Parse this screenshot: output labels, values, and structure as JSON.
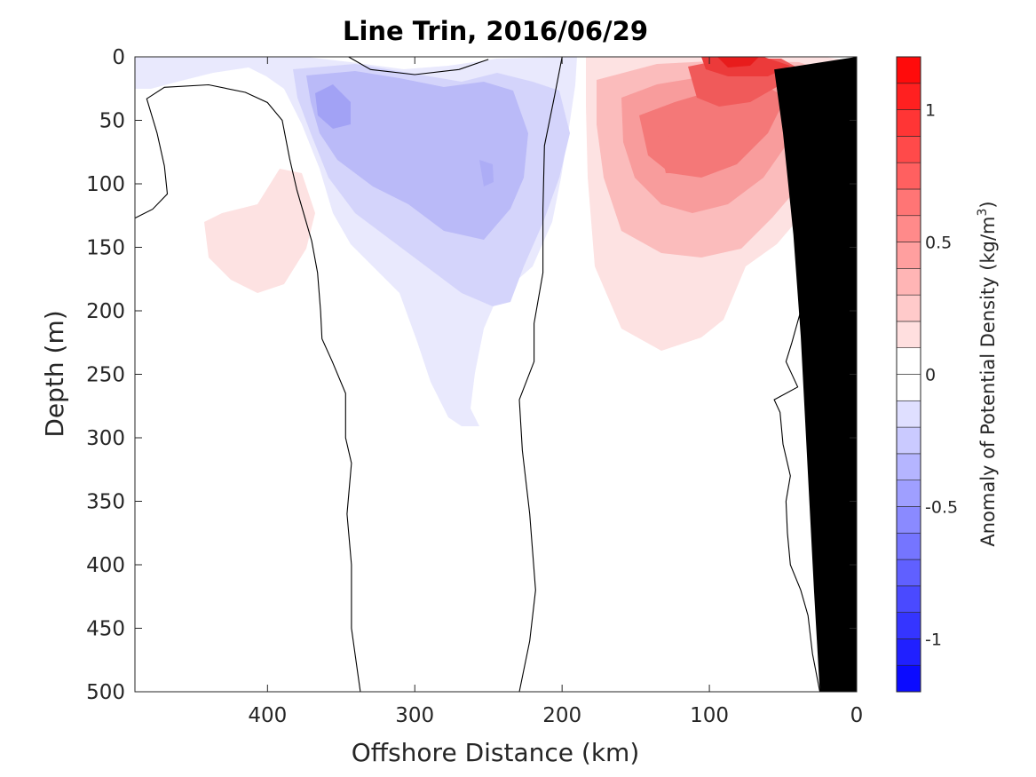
{
  "chart_data": {
    "type": "contour",
    "title": "Line Trin, 2016/06/29",
    "xlabel": "Offshore Distance (km)",
    "ylabel": "Depth (m)",
    "colorbar_label": "Anomaly of Potential Density (kg/m",
    "colorbar_label_sup": "3",
    "colorbar_label_end": ")",
    "xlim": [
      490,
      0
    ],
    "x_reversed": true,
    "xticks": [
      400,
      300,
      200,
      100,
      0
    ],
    "xtick_labels": [
      "400",
      "300",
      "200",
      "100",
      "0"
    ],
    "ylim": [
      0,
      500
    ],
    "y_reversed": true,
    "yticks": [
      0,
      50,
      100,
      150,
      200,
      250,
      300,
      350,
      400,
      450,
      500
    ],
    "ytick_labels": [
      "0",
      "50",
      "100",
      "150",
      "200",
      "250",
      "300",
      "350",
      "400",
      "450",
      "500"
    ],
    "clim": [
      -1.2,
      1.2
    ],
    "cticks": [
      -1,
      -0.5,
      0,
      0.5,
      1
    ],
    "ctick_labels": [
      "-1",
      "-0.5",
      "0",
      "0.5",
      "1"
    ],
    "colormap": "blue-white-red",
    "colormap_colors": {
      "negative": "#0000ff",
      "zero": "#ffffff",
      "positive": "#ff0000"
    },
    "n_levels": 24,
    "features": [
      {
        "name": "negative anomaly (blue) core",
        "x_range_km": [
          370,
          200
        ],
        "depth_range_m": [
          0,
          290
        ],
        "min_value": -0.45
      },
      {
        "name": "positive anomaly (red) core",
        "x_range_km": [
          175,
          30
        ],
        "depth_range_m": [
          0,
          230
        ],
        "max_value": 1.15
      },
      {
        "name": "weak positive patch",
        "x_range_km": [
          455,
          370
        ],
        "depth_range_m": [
          80,
          185
        ],
        "max_value": 0.15
      }
    ],
    "zero_contours": [
      {
        "name": "zero-contour-offshore",
        "points": [
          [
            490,
            127
          ],
          [
            478,
            120
          ],
          [
            468,
            108
          ],
          [
            470,
            86
          ],
          [
            475,
            60
          ],
          [
            482,
            33
          ],
          [
            470,
            24
          ],
          [
            440,
            22
          ],
          [
            415,
            28
          ],
          [
            400,
            36
          ],
          [
            390,
            50
          ],
          [
            385,
            80
          ],
          [
            380,
            105
          ],
          [
            375,
            125
          ],
          [
            370,
            145
          ],
          [
            366,
            170
          ],
          [
            364,
            200
          ],
          [
            363,
            222
          ],
          [
            356,
            240
          ],
          [
            347,
            265
          ],
          [
            347,
            300
          ],
          [
            343,
            320
          ],
          [
            346,
            360
          ],
          [
            343,
            400
          ],
          [
            343,
            450
          ],
          [
            337,
            500
          ]
        ]
      },
      {
        "name": "zero-contour-mid",
        "points": [
          [
            200,
            0
          ],
          [
            205,
            30
          ],
          [
            212,
            70
          ],
          [
            213,
            120
          ],
          [
            213,
            170
          ],
          [
            219,
            210
          ],
          [
            219,
            240
          ],
          [
            229,
            270
          ],
          [
            227,
            310
          ],
          [
            222,
            360
          ],
          [
            220,
            390
          ],
          [
            218,
            420
          ],
          [
            222,
            460
          ],
          [
            229,
            500
          ]
        ]
      },
      {
        "name": "zero-contour-surface-loop",
        "points": [
          [
            345,
            0
          ],
          [
            330,
            10
          ],
          [
            300,
            14
          ],
          [
            270,
            10
          ],
          [
            250,
            2
          ]
        ]
      },
      {
        "name": "zero-contour-coastal",
        "points": [
          [
            25,
            500
          ],
          [
            30,
            470
          ],
          [
            33,
            440
          ],
          [
            38,
            420
          ],
          [
            45,
            400
          ],
          [
            47,
            375
          ],
          [
            48,
            350
          ],
          [
            45,
            330
          ],
          [
            50,
            305
          ],
          [
            52,
            280
          ],
          [
            56,
            270
          ],
          [
            40,
            260
          ],
          [
            48,
            240
          ],
          [
            44,
            225
          ],
          [
            38,
            200
          ],
          [
            40,
            180
          ],
          [
            38,
            150
          ],
          [
            35,
            125
          ],
          [
            30,
            110
          ]
        ]
      }
    ],
    "bathymetry": {
      "color": "#000000",
      "points": [
        [
          0,
          0
        ],
        [
          0,
          500
        ],
        [
          25,
          500
        ],
        [
          27,
          460
        ],
        [
          29,
          420
        ],
        [
          33,
          330
        ],
        [
          38,
          220
        ],
        [
          43,
          140
        ],
        [
          50,
          60
        ],
        [
          56,
          10
        ]
      ]
    }
  }
}
